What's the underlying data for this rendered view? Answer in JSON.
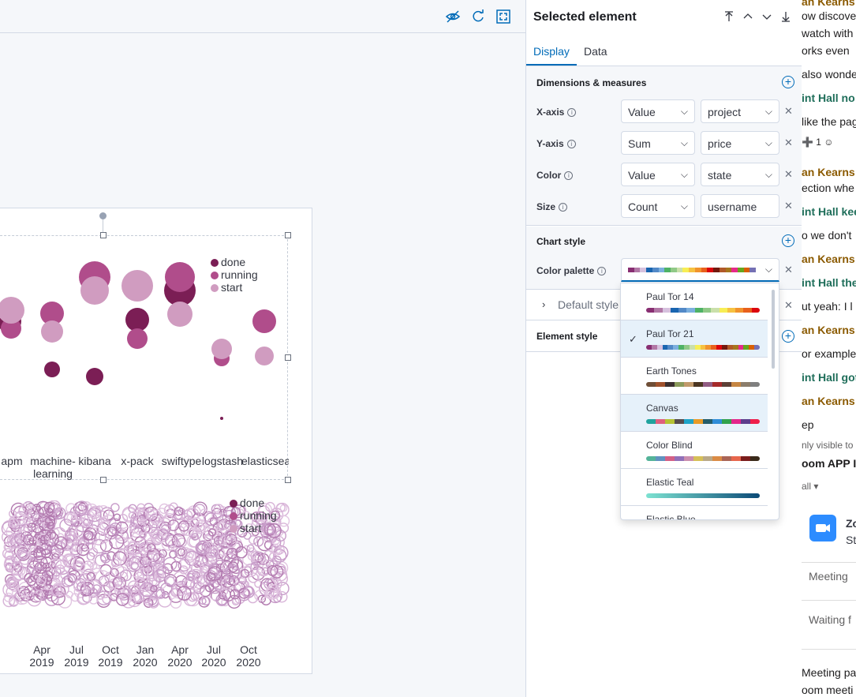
{
  "panel": {
    "title": "Selected element",
    "tabs": [
      "Display",
      "Data"
    ],
    "active_tab": "Display",
    "dimensions": {
      "title": "Dimensions & measures",
      "rows": [
        {
          "label": "X-axis",
          "agg": "Value",
          "field": "project"
        },
        {
          "label": "Y-axis",
          "agg": "Sum",
          "field": "price"
        },
        {
          "label": "Color",
          "agg": "Value",
          "field": "state"
        },
        {
          "label": "Size",
          "agg": "Count",
          "field": "username"
        }
      ]
    },
    "chart_style": {
      "title": "Chart style",
      "palette_label": "Color palette",
      "default_style_label": "Default style"
    },
    "element_style": {
      "title": "Element style"
    }
  },
  "palette_colors": {
    "paul_tor_21": [
      "#882e72",
      "#b178a6",
      "#d6c1de",
      "#1965b0",
      "#5289c7",
      "#7bafde",
      "#4eb265",
      "#90c987",
      "#cae0ab",
      "#f7ee55",
      "#f6c141",
      "#f1932d",
      "#e8601c",
      "#dc050c",
      "#72190e",
      "#b15928",
      "#a6761d",
      "#e7298a",
      "#66a61e",
      "#d95f02",
      "#7570b3"
    ],
    "paul_tor_14": [
      "#882e72",
      "#b178a6",
      "#d6c1de",
      "#1965b0",
      "#5289c7",
      "#7bafde",
      "#4eb265",
      "#90c987",
      "#cae0ab",
      "#f7ee55",
      "#f6c141",
      "#f1932d",
      "#e8601c",
      "#dc050c"
    ],
    "earth_tones": [
      "#6f4e37",
      "#a0522d",
      "#3b2f2f",
      "#8a9a5b",
      "#c19a6b",
      "#4b3621",
      "#915c83",
      "#a52a2a",
      "#5d4037",
      "#c68642",
      "#8b7d6b",
      "#7f7f7f"
    ],
    "canvas": [
      "#20a39e",
      "#e0607e",
      "#b5c334",
      "#564c4d",
      "#1ea4c9",
      "#e89b27",
      "#245d6b",
      "#2f8dd8",
      "#31a24c",
      "#e4258b",
      "#5c3d8c",
      "#ef1f4a"
    ],
    "color_blind": [
      "#54b399",
      "#6092c0",
      "#d36086",
      "#9170b8",
      "#ca8eae",
      "#d6bf57",
      "#b9a888",
      "#da8b45",
      "#aa6556",
      "#e7664c",
      "#7a1c1c",
      "#3a2a1a"
    ],
    "elastic_teal": [
      "#7de2d1",
      "#6fcfc6",
      "#60bcbb",
      "#52a9af",
      "#4496a4",
      "#368399",
      "#28708d",
      "#1a5d82",
      "#0c4a77"
    ]
  },
  "dropdown": {
    "options": [
      {
        "label": "Paul Tor 14",
        "key": "paul_tor_14",
        "selected": false,
        "highlighted": false
      },
      {
        "label": "Paul Tor 21",
        "key": "paul_tor_21",
        "selected": true,
        "highlighted": true
      },
      {
        "label": "Earth Tones",
        "key": "earth_tones",
        "selected": false,
        "highlighted": false
      },
      {
        "label": "Canvas",
        "key": "canvas",
        "selected": false,
        "highlighted": true
      },
      {
        "label": "Color Blind",
        "key": "color_blind",
        "selected": false,
        "highlighted": false
      },
      {
        "label": "Elastic Teal",
        "key": "elastic_teal",
        "selected": false,
        "highlighted": false
      },
      {
        "label": "Elastic Blue",
        "key": "elastic_teal",
        "selected": false,
        "highlighted": false
      }
    ]
  },
  "chart_data": [
    {
      "type": "scatter",
      "categories": [
        "apm",
        "machine-learning",
        "kibana",
        "x-pack",
        "swiftype",
        "logstash",
        "elasticsearch"
      ],
      "category_labels": [
        "apm",
        "machine-\nlearning",
        "kibana",
        "x-pack",
        "swiftype",
        "logstash",
        "elasticsea"
      ],
      "series": [
        {
          "name": "done",
          "color": "#7b1e55"
        },
        {
          "name": "running",
          "color": "#b04d8b"
        },
        {
          "name": "start",
          "color": "#d09cc0"
        }
      ],
      "legend": [
        "done",
        "running",
        "start"
      ]
    },
    {
      "type": "scatter",
      "x_ticks": [
        "Apr\n2019",
        "Jul\n2019",
        "Oct\n2019",
        "Jan\n2020",
        "Apr\n2020",
        "Jul\n2020",
        "Oct\n2020"
      ],
      "legend": [
        "done",
        "running",
        "start"
      ]
    }
  ],
  "chat": {
    "lines": [
      {
        "text": "an Kearns",
        "style": "brown"
      },
      {
        "text": "ow discove",
        "style": "plain"
      },
      {
        "text": "watch with",
        "style": "plain"
      },
      {
        "text": "orks even",
        "style": "plain"
      },
      {
        "text": "also wonde",
        "style": "plain"
      },
      {
        "text": "int Hall no",
        "style": "teal"
      },
      {
        "text": "like the pag",
        "style": "plain"
      },
      {
        "text": "an Kearns",
        "style": "brown"
      },
      {
        "text": "ection whe",
        "style": "plain"
      },
      {
        "text": "int Hall kee",
        "style": "teal"
      },
      {
        "text": "o we don't",
        "style": "plain"
      },
      {
        "text": "an Kearns",
        "style": "brown"
      },
      {
        "text": "int Hall the",
        "style": "teal"
      },
      {
        "text": "ut yeah: I l",
        "style": "plain"
      },
      {
        "text": "an Kearns",
        "style": "brown"
      },
      {
        "text": "or example",
        "style": "plain"
      },
      {
        "text": "int Hall got",
        "style": "teal"
      },
      {
        "text": "an Kearns",
        "style": "brown"
      },
      {
        "text": "ep",
        "style": "plain"
      },
      {
        "text": "nly visible to",
        "style": "small"
      },
      {
        "text": "oom APP In",
        "style": "bold"
      },
      {
        "text": "all ▾",
        "style": "small"
      },
      {
        "text": "Meeting",
        "style": "grey"
      },
      {
        "text": "Waiting f",
        "style": "grey"
      },
      {
        "text": "Meeting pas",
        "style": "plain"
      },
      {
        "text": "oom meeti",
        "style": "plain"
      }
    ],
    "reaction": "1"
  }
}
